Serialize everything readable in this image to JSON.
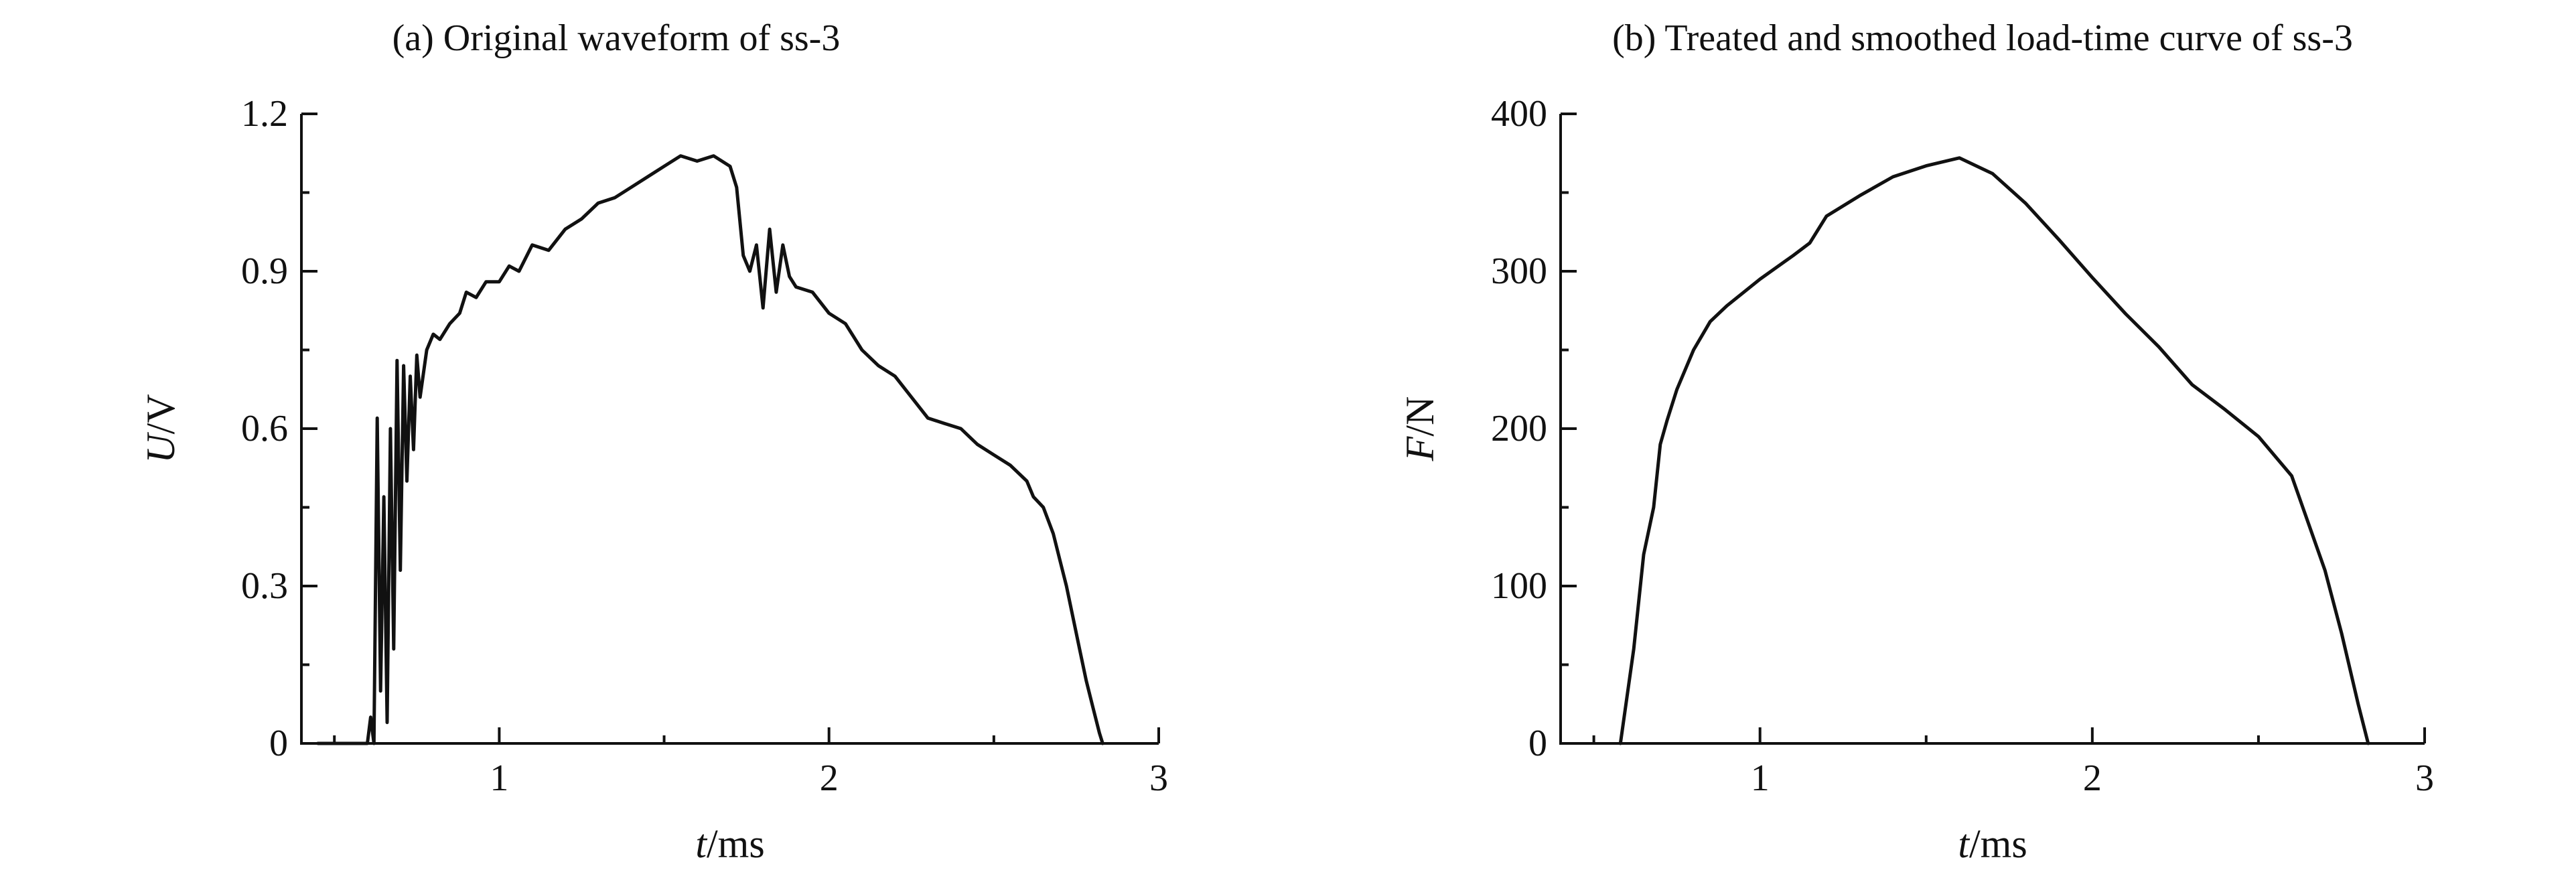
{
  "chart_data": [
    {
      "type": "line",
      "title": "(a) Original waveform of ss-3",
      "xlabel": {
        "var": "t",
        "unit": "/ms"
      },
      "ylabel": {
        "var": "U",
        "unit": "/V"
      },
      "xlim": [
        0.4,
        3.0
      ],
      "ylim": [
        0,
        1.2
      ],
      "xticks": [
        1,
        2,
        3
      ],
      "xtick_labels": [
        "1",
        "2",
        "3"
      ],
      "yticks": [
        0,
        0.3,
        0.6,
        0.9,
        1.2
      ],
      "ytick_labels": [
        "0",
        "0.3",
        "0.6",
        "0.9",
        "1.2"
      ],
      "grid": false,
      "series": [
        {
          "x": [
            0.45,
            0.6,
            0.61,
            0.62,
            0.63,
            0.64,
            0.65,
            0.66,
            0.67,
            0.68,
            0.69,
            0.7,
            0.71,
            0.72,
            0.73,
            0.74,
            0.75,
            0.76,
            0.78,
            0.8,
            0.82,
            0.85,
            0.88,
            0.9,
            0.93,
            0.96,
            1.0,
            1.03,
            1.06,
            1.1,
            1.15,
            1.2,
            1.25,
            1.3,
            1.35,
            1.4,
            1.45,
            1.5,
            1.55,
            1.6,
            1.65,
            1.7,
            1.72,
            1.74,
            1.76,
            1.78,
            1.8,
            1.82,
            1.84,
            1.86,
            1.88,
            1.9,
            1.95,
            2.0,
            2.05,
            2.1,
            2.15,
            2.2,
            2.25,
            2.3,
            2.35,
            2.4,
            2.45,
            2.5,
            2.55,
            2.6,
            2.62,
            2.65,
            2.68,
            2.7,
            2.72,
            2.74,
            2.76,
            2.78,
            2.8,
            2.82,
            2.83
          ],
          "y": [
            0,
            0,
            0.05,
            0,
            0.62,
            0.1,
            0.47,
            0.04,
            0.6,
            0.18,
            0.73,
            0.33,
            0.72,
            0.5,
            0.7,
            0.56,
            0.74,
            0.66,
            0.75,
            0.78,
            0.77,
            0.8,
            0.82,
            0.86,
            0.85,
            0.88,
            0.88,
            0.91,
            0.9,
            0.95,
            0.94,
            0.98,
            1.0,
            1.03,
            1.04,
            1.06,
            1.08,
            1.1,
            1.12,
            1.11,
            1.12,
            1.1,
            1.06,
            0.93,
            0.9,
            0.95,
            0.83,
            0.98,
            0.86,
            0.95,
            0.89,
            0.87,
            0.86,
            0.82,
            0.8,
            0.75,
            0.72,
            0.7,
            0.66,
            0.62,
            0.61,
            0.6,
            0.57,
            0.55,
            0.53,
            0.5,
            0.47,
            0.45,
            0.4,
            0.35,
            0.3,
            0.24,
            0.18,
            0.12,
            0.07,
            0.02,
            0
          ]
        }
      ]
    },
    {
      "type": "line",
      "title": "(b) Treated and smoothed load-time curve of ss-3",
      "xlabel": {
        "var": "t",
        "unit": "/ms"
      },
      "ylabel": {
        "var": "F",
        "unit": "/N"
      },
      "xlim": [
        0.4,
        3.0
      ],
      "ylim": [
        0,
        400
      ],
      "xticks": [
        1,
        2,
        3
      ],
      "xtick_labels": [
        "1",
        "2",
        "3"
      ],
      "yticks": [
        0,
        100,
        200,
        300,
        400
      ],
      "ytick_labels": [
        "0",
        "100",
        "200",
        "300",
        "400"
      ],
      "grid": false,
      "series": [
        {
          "x": [
            0.58,
            0.62,
            0.65,
            0.68,
            0.7,
            0.72,
            0.75,
            0.8,
            0.85,
            0.9,
            1.0,
            1.1,
            1.15,
            1.2,
            1.3,
            1.4,
            1.5,
            1.6,
            1.7,
            1.8,
            1.9,
            2.0,
            2.1,
            2.2,
            2.3,
            2.4,
            2.5,
            2.6,
            2.7,
            2.75,
            2.8,
            2.83
          ],
          "y": [
            0,
            60,
            120,
            150,
            190,
            205,
            225,
            250,
            268,
            278,
            295,
            310,
            318,
            335,
            348,
            360,
            367,
            372,
            362,
            343,
            320,
            296,
            273,
            252,
            228,
            212,
            195,
            170,
            110,
            70,
            25,
            0
          ]
        }
      ]
    }
  ]
}
